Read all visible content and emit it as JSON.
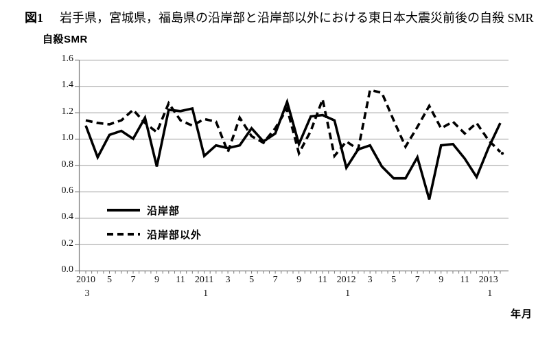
{
  "header": {
    "fig_label": "図1",
    "title_text": "岩手県，宮城県，福島県の沿岸部と沿岸部以外における東日本大震災前後の自殺 SMR"
  },
  "chart_data": {
    "type": "line",
    "title": "図1 岩手県，宮城県，福島県の沿岸部と沿岸部以外における東日本大震災前後の自殺 SMR",
    "ylabel": "自殺SMR",
    "xlabel": "年月",
    "ylim": [
      0.0,
      1.6
    ],
    "grid": true,
    "legend_position": "inside-left",
    "yticks": [
      "0.0",
      "0.2",
      "0.4",
      "0.6",
      "0.8",
      "1.0",
      "1.2",
      "1.4",
      "1.6"
    ],
    "xticks": [
      {
        "label": "2010",
        "sub": "3"
      },
      {
        "label": "5"
      },
      {
        "label": "7"
      },
      {
        "label": "9"
      },
      {
        "label": "11"
      },
      {
        "label": "2011",
        "sub": "1"
      },
      {
        "label": "3"
      },
      {
        "label": "5"
      },
      {
        "label": "7"
      },
      {
        "label": "9"
      },
      {
        "label": "11"
      },
      {
        "label": "2012",
        "sub": "1"
      },
      {
        "label": "3"
      },
      {
        "label": "5"
      },
      {
        "label": "7"
      },
      {
        "label": "9"
      },
      {
        "label": "11"
      },
      {
        "label": "2013",
        "sub": "1"
      }
    ],
    "x": [
      "2010/3",
      "2010/4",
      "2010/5",
      "2010/6",
      "2010/7",
      "2010/8",
      "2010/9",
      "2010/10",
      "2010/11",
      "2010/12",
      "2011/1",
      "2011/2",
      "2011/3",
      "2011/4",
      "2011/5",
      "2011/6",
      "2011/7",
      "2011/8",
      "2011/9",
      "2011/10",
      "2011/11",
      "2011/12",
      "2012/1",
      "2012/2",
      "2012/3",
      "2012/4",
      "2012/5",
      "2012/6",
      "2012/7",
      "2012/8",
      "2012/9",
      "2012/10",
      "2012/11",
      "2012/12",
      "2013/1",
      "2013/2"
    ],
    "series": [
      {
        "name": "沿岸部",
        "style": "solid",
        "color": "#000000",
        "values": [
          1.1,
          0.86,
          1.03,
          1.06,
          1.0,
          1.16,
          0.79,
          1.22,
          1.21,
          1.23,
          0.87,
          0.95,
          0.93,
          0.95,
          1.08,
          0.98,
          1.04,
          1.28,
          0.96,
          1.17,
          1.18,
          1.14,
          0.78,
          0.92,
          0.95,
          0.79,
          0.7,
          0.7,
          0.86,
          0.54,
          0.95,
          0.96,
          0.85,
          0.71,
          0.93,
          1.12
        ]
      },
      {
        "name": "沿岸部以外",
        "style": "dashed",
        "color": "#000000",
        "values": [
          1.14,
          1.12,
          1.11,
          1.14,
          1.22,
          1.12,
          1.05,
          1.27,
          1.14,
          1.1,
          1.15,
          1.13,
          0.9,
          1.16,
          1.02,
          0.97,
          1.08,
          1.23,
          0.89,
          1.06,
          1.3,
          0.87,
          0.98,
          0.92,
          1.37,
          1.35,
          1.14,
          0.94,
          1.09,
          1.25,
          1.08,
          1.13,
          1.04,
          1.12,
          0.99,
          0.9
        ]
      }
    ],
    "colors": {
      "line": "#000000",
      "gridline": "#9a9a9a",
      "axis": "#7a7a7a",
      "text": "#000000",
      "background": "#ffffff"
    }
  }
}
